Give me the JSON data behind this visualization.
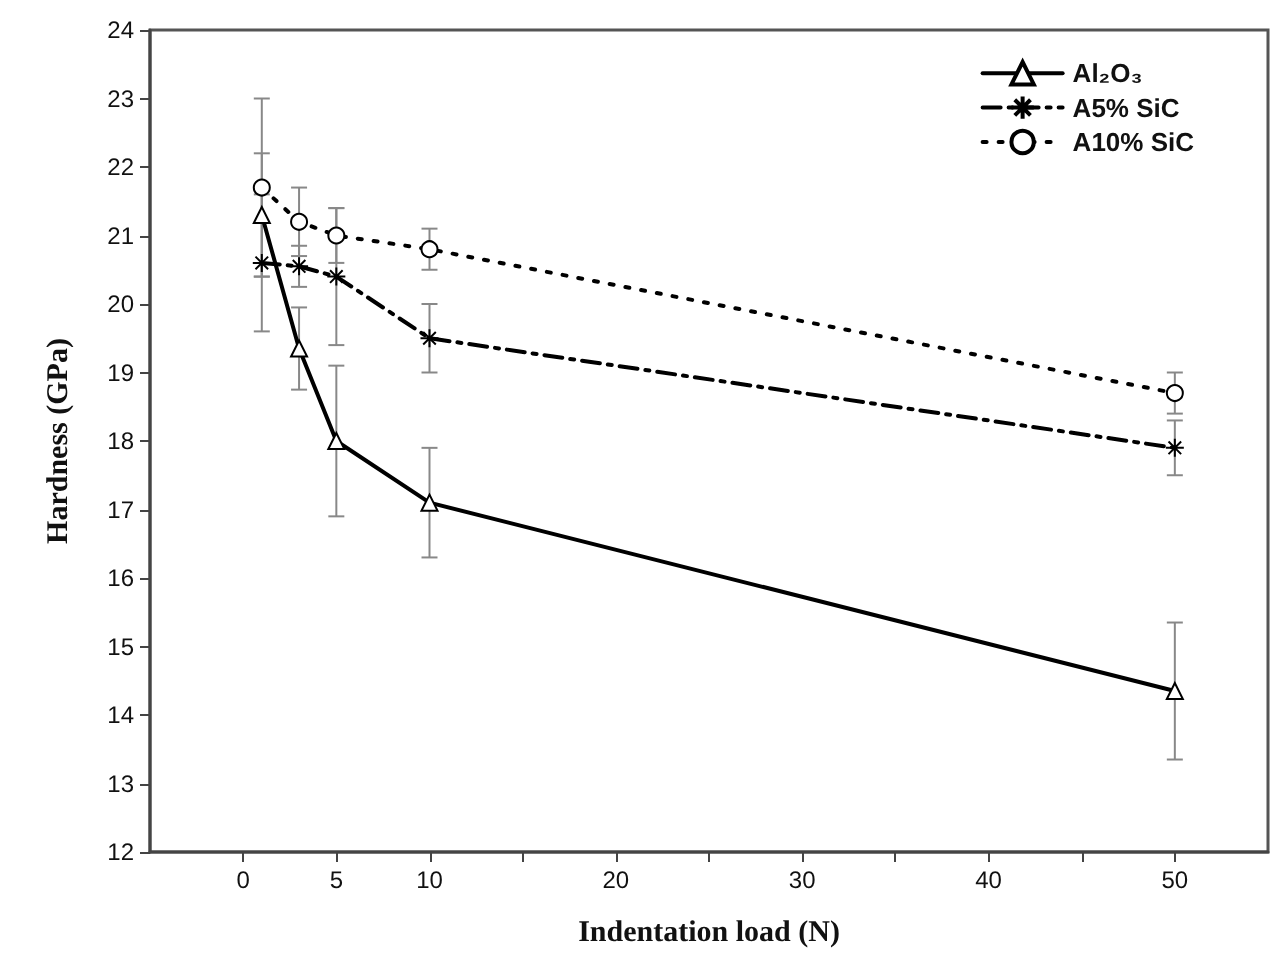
{
  "chart_data": {
    "type": "line",
    "xlabel": "Indentation load (N)",
    "ylabel": "Hardness (GPa)",
    "x": [
      1,
      3,
      5,
      10,
      50
    ],
    "series": [
      {
        "name": "Al₂O₃",
        "color": "#000000",
        "marker": "triangle",
        "line_style": "solid",
        "values": [
          21.3,
          19.35,
          18.0,
          17.1,
          14.35
        ],
        "errors": [
          0.9,
          0.6,
          1.1,
          0.8,
          1.0
        ]
      },
      {
        "name": "A5% SiC",
        "color": "#000000",
        "marker": "cross",
        "line_style": "dashed",
        "values": [
          20.6,
          20.55,
          20.4,
          19.5,
          17.9
        ],
        "errors": [
          1.0,
          0.3,
          1.0,
          0.5,
          0.4
        ]
      },
      {
        "name": "A10% SiC",
        "color": "#000000",
        "marker": "circle",
        "line_style": "dotted",
        "values": [
          21.7,
          21.2,
          21.0,
          20.8,
          18.7
        ],
        "errors": [
          1.3,
          0.5,
          0.4,
          0.3,
          0.3
        ]
      }
    ],
    "xlim": [
      -5,
      55
    ],
    "xticks": [
      0,
      5,
      10,
      {
        "value": 15,
        "label": null
      },
      20,
      {
        "value": 25,
        "label": null
      },
      30,
      {
        "value": 35,
        "label": null
      },
      40,
      {
        "value": 45,
        "label": null
      },
      50
    ],
    "ylim": [
      12,
      24
    ],
    "yticks": [
      12,
      13,
      14,
      15,
      16,
      17,
      18,
      19,
      20,
      21,
      22,
      23,
      24
    ],
    "grid": false,
    "legend": "top right"
  }
}
